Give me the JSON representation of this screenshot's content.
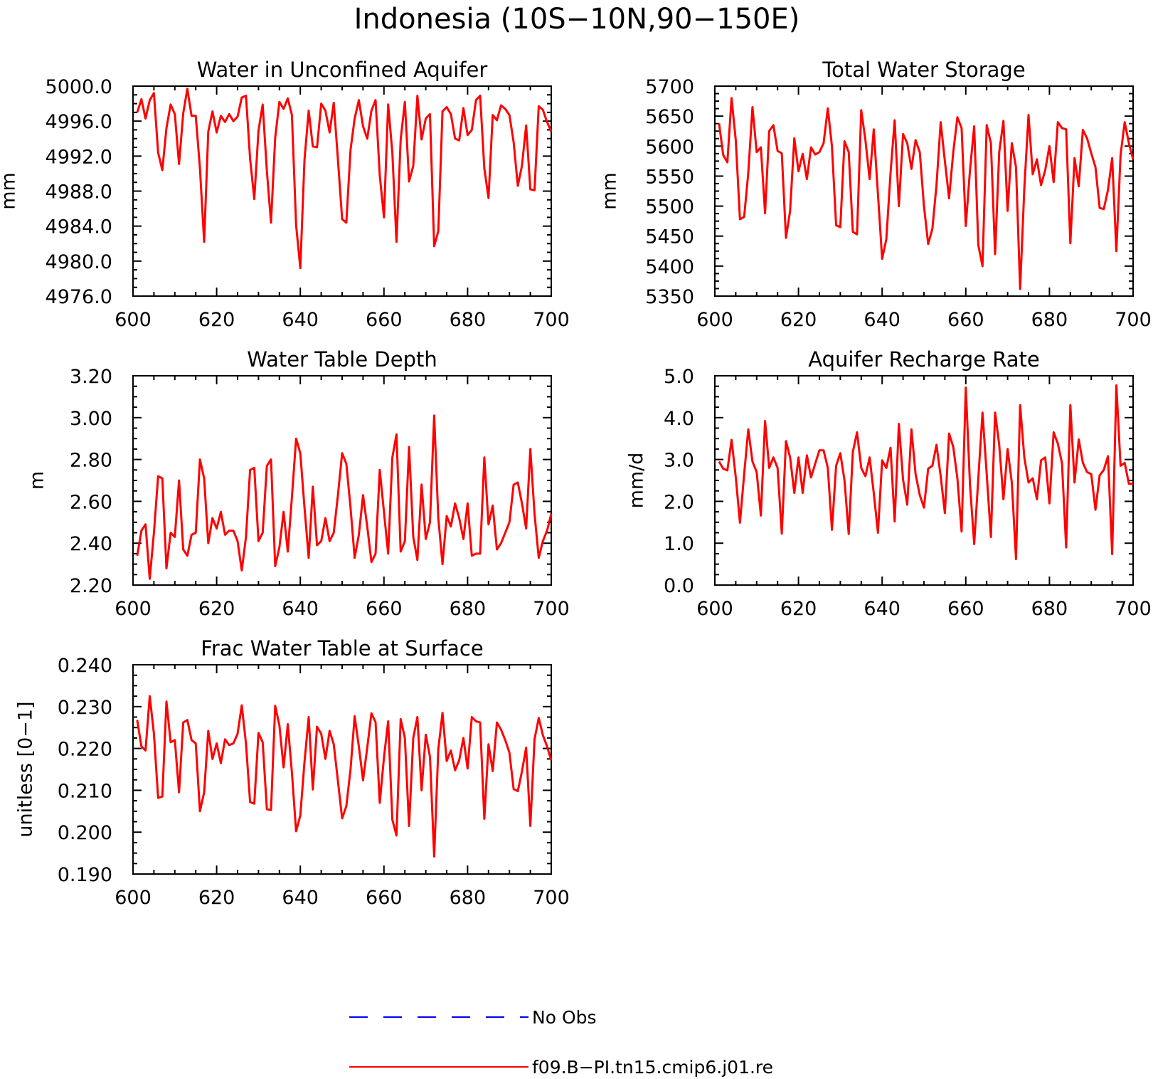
{
  "figure": {
    "title": "Indonesia (10S−10N,90−150E)",
    "colors": {
      "model": "#ff0000",
      "obs": "#0000ff",
      "axis": "#000000"
    }
  },
  "legend": {
    "entries": [
      {
        "label": "No Obs",
        "style": "dashed",
        "color": "#0000ff"
      },
      {
        "label": "f09.B−PI.tn15.cmip6.j01.re",
        "style": "solid",
        "color": "#ff0000"
      }
    ]
  },
  "chart_data": [
    {
      "type": "line",
      "title": "Water in Unconfined Aquifer",
      "xlabel": "",
      "ylabel": "mm",
      "xlim": [
        600,
        700
      ],
      "ylim": [
        4976,
        5000
      ],
      "xticks": [
        "600",
        "620",
        "640",
        "660",
        "680",
        "700"
      ],
      "yticks": [
        "4976.0",
        "4980.0",
        "4984.0",
        "4988.0",
        "4992.0",
        "4996.0",
        "5000.0"
      ],
      "x_start": 601,
      "series": [
        {
          "name": "f09.B−PI.tn15.cmip6.j01.re",
          "values": [
            4997.0,
            4998.5,
            4996.3,
            4998.4,
            4999.2,
            4992.4,
            4990.4,
            4995.2,
            4997.9,
            4996.8,
            4991.1,
            4996.9,
            4999.7,
            4996.6,
            4996.6,
            4990.6,
            4982.2,
            4994.8,
            4997.1,
            4994.7,
            4996.6,
            4995.9,
            4996.8,
            4996.0,
            4996.5,
            4998.7,
            4998.9,
            4991.7,
            4987.1,
            4994.9,
            4997.9,
            4990.3,
            4984.4,
            4994.1,
            4998.2,
            4997.4,
            4998.6,
            4996.7,
            4984.1,
            4979.2,
            4991.6,
            4997.2,
            4993.1,
            4993.0,
            4998.0,
            4997.2,
            4994.7,
            4998.1,
            4991.6,
            4984.8,
            4984.4,
            4992.7,
            4996.3,
            4998.4,
            4995.4,
            4994.0,
            4997.2,
            4998.4,
            4989.8,
            4985.0,
            4997.9,
            4992.4,
            4982.2,
            4993.9,
            4998.2,
            4989.1,
            4990.9,
            4998.9,
            4993.9,
            4996.3,
            4996.8,
            4981.7,
            4983.4,
            4997.1,
            4997.6,
            4996.8,
            4994.0,
            4993.8,
            4997.5,
            4994.4,
            4995.0,
            4998.4,
            4998.9,
            4990.6,
            4987.2,
            4996.7,
            4996.1,
            4997.8,
            4997.4,
            4996.7,
            4993.6,
            4988.6,
            4990.9,
            4995.5,
            4988.2,
            4988.1,
            4997.7,
            4997.3,
            4995.9,
            4994.8
          ]
        }
      ]
    },
    {
      "type": "line",
      "title": "Total Water Storage",
      "xlabel": "",
      "ylabel": "mm",
      "xlim": [
        600,
        700
      ],
      "ylim": [
        5350,
        5700
      ],
      "xticks": [
        "600",
        "620",
        "640",
        "660",
        "680",
        "700"
      ],
      "yticks": [
        "5350",
        "5400",
        "5450",
        "5500",
        "5550",
        "5600",
        "5650",
        "5700"
      ],
      "x_start": 601,
      "series": [
        {
          "name": "f09.B−PI.tn15.cmip6.j01.re",
          "values": [
            5638,
            5585,
            5573,
            5680,
            5610,
            5478,
            5482,
            5555,
            5665,
            5590,
            5598,
            5488,
            5625,
            5635,
            5592,
            5588,
            5447,
            5492,
            5613,
            5558,
            5587,
            5545,
            5598,
            5586,
            5590,
            5605,
            5663,
            5600,
            5468,
            5465,
            5608,
            5590,
            5457,
            5453,
            5660,
            5610,
            5545,
            5628,
            5520,
            5412,
            5445,
            5555,
            5643,
            5500,
            5620,
            5605,
            5562,
            5610,
            5590,
            5500,
            5437,
            5462,
            5535,
            5640,
            5575,
            5513,
            5590,
            5648,
            5630,
            5467,
            5560,
            5633,
            5435,
            5400,
            5635,
            5605,
            5420,
            5590,
            5642,
            5492,
            5605,
            5565,
            5362,
            5530,
            5652,
            5553,
            5578,
            5535,
            5560,
            5600,
            5540,
            5640,
            5630,
            5628,
            5438,
            5580,
            5533,
            5627,
            5613,
            5588,
            5565,
            5497,
            5495,
            5527,
            5580,
            5425,
            5585,
            5640,
            5605,
            5578
          ]
        }
      ]
    },
    {
      "type": "line",
      "title": "Water Table Depth",
      "xlabel": "",
      "ylabel": "m",
      "xlim": [
        600,
        700
      ],
      "ylim": [
        2.2,
        3.2
      ],
      "xticks": [
        "600",
        "620",
        "640",
        "660",
        "680",
        "700"
      ],
      "yticks": [
        "2.20",
        "2.40",
        "2.60",
        "2.80",
        "3.00",
        "3.20"
      ],
      "x_start": 601,
      "series": [
        {
          "name": "f09.B−PI.tn15.cmip6.j01.re",
          "values": [
            2.34,
            2.46,
            2.49,
            2.23,
            2.45,
            2.72,
            2.71,
            2.28,
            2.45,
            2.43,
            2.7,
            2.37,
            2.34,
            2.44,
            2.45,
            2.8,
            2.71,
            2.4,
            2.52,
            2.47,
            2.55,
            2.44,
            2.46,
            2.46,
            2.41,
            2.27,
            2.43,
            2.75,
            2.76,
            2.41,
            2.45,
            2.77,
            2.8,
            2.29,
            2.38,
            2.55,
            2.36,
            2.62,
            2.9,
            2.83,
            2.57,
            2.33,
            2.67,
            2.39,
            2.41,
            2.52,
            2.41,
            2.45,
            2.63,
            2.83,
            2.78,
            2.57,
            2.33,
            2.44,
            2.63,
            2.48,
            2.31,
            2.35,
            2.75,
            2.55,
            2.35,
            2.81,
            2.92,
            2.36,
            2.41,
            2.86,
            2.43,
            2.32,
            2.68,
            2.42,
            2.5,
            3.01,
            2.52,
            2.3,
            2.53,
            2.48,
            2.59,
            2.52,
            2.42,
            2.59,
            2.34,
            2.35,
            2.35,
            2.81,
            2.49,
            2.58,
            2.37,
            2.4,
            2.45,
            2.5,
            2.68,
            2.69,
            2.59,
            2.47,
            2.85,
            2.54,
            2.33,
            2.41,
            2.46,
            2.54
          ]
        }
      ]
    },
    {
      "type": "line",
      "title": "Aquifer Recharge Rate",
      "xlabel": "",
      "ylabel": "mm/d",
      "xlim": [
        600,
        700
      ],
      "ylim": [
        0,
        5
      ],
      "xticks": [
        "600",
        "620",
        "640",
        "660",
        "680",
        "700"
      ],
      "yticks": [
        "0.0",
        "1.0",
        "2.0",
        "3.0",
        "4.0",
        "5.0"
      ],
      "x_start": 601,
      "series": [
        {
          "name": "f09.B−PI.tn15.cmip6.j01.re",
          "values": [
            2.95,
            2.78,
            2.74,
            3.47,
            2.58,
            1.49,
            2.65,
            3.72,
            2.95,
            2.7,
            1.66,
            3.92,
            2.8,
            3.05,
            2.8,
            1.23,
            3.44,
            3.05,
            2.2,
            3.05,
            2.2,
            3.1,
            2.57,
            2.9,
            3.22,
            3.22,
            2.8,
            1.32,
            2.85,
            3.15,
            2.5,
            1.22,
            3.18,
            3.65,
            2.8,
            2.6,
            3.05,
            2.2,
            1.25,
            2.98,
            2.8,
            3.28,
            1.52,
            3.85,
            2.52,
            1.92,
            3.72,
            2.65,
            2.15,
            1.85,
            2.78,
            2.85,
            3.35,
            2.6,
            1.72,
            3.62,
            3.3,
            2.55,
            1.28,
            4.72,
            2.4,
            0.98,
            2.55,
            4.12,
            2.65,
            1.15,
            4.12,
            3.35,
            2.05,
            3.25,
            2.45,
            0.62,
            4.3,
            3.05,
            2.45,
            2.55,
            2.05,
            2.98,
            3.05,
            1.95,
            3.65,
            3.38,
            2.92,
            0.9,
            4.3,
            2.45,
            3.48,
            2.92,
            2.7,
            2.65,
            1.8,
            2.62,
            2.75,
            3.08,
            0.74,
            4.77,
            2.85,
            2.92,
            2.42,
            2.42
          ]
        }
      ]
    },
    {
      "type": "line",
      "title": "Frac Water Table at Surface",
      "xlabel": "",
      "ylabel": "unitless [0−1]",
      "xlim": [
        600,
        700
      ],
      "ylim": [
        0.19,
        0.24
      ],
      "xticks": [
        "600",
        "620",
        "640",
        "660",
        "680",
        "700"
      ],
      "yticks": [
        "0.190",
        "0.200",
        "0.210",
        "0.220",
        "0.230",
        "0.240"
      ],
      "x_start": 601,
      "series": [
        {
          "name": "f09.B−PI.tn15.cmip6.j01.re",
          "values": [
            0.2268,
            0.2205,
            0.2195,
            0.2325,
            0.2235,
            0.2082,
            0.2085,
            0.2312,
            0.2215,
            0.222,
            0.2095,
            0.2262,
            0.2268,
            0.222,
            0.2212,
            0.205,
            0.2095,
            0.2242,
            0.2175,
            0.2212,
            0.2165,
            0.2222,
            0.2208,
            0.2212,
            0.2235,
            0.2303,
            0.2212,
            0.2072,
            0.2068,
            0.2237,
            0.2215,
            0.2055,
            0.2053,
            0.2302,
            0.2255,
            0.2155,
            0.2258,
            0.2142,
            0.2002,
            0.204,
            0.2168,
            0.2275,
            0.2102,
            0.2252,
            0.2235,
            0.2175,
            0.2242,
            0.221,
            0.2122,
            0.2033,
            0.2062,
            0.215,
            0.2277,
            0.2205,
            0.2124,
            0.2202,
            0.2284,
            0.2263,
            0.207,
            0.2178,
            0.2265,
            0.203,
            0.1992,
            0.227,
            0.2225,
            0.2015,
            0.2225,
            0.2275,
            0.21,
            0.2233,
            0.218,
            0.1942,
            0.2198,
            0.2285,
            0.217,
            0.2195,
            0.2148,
            0.2172,
            0.2225,
            0.2152,
            0.2275,
            0.2265,
            0.2262,
            0.2032,
            0.221,
            0.2146,
            0.2262,
            0.2245,
            0.222,
            0.219,
            0.2103,
            0.2098,
            0.2145,
            0.2202,
            0.2015,
            0.2222,
            0.2273,
            0.2232,
            0.2205,
            0.2172
          ]
        }
      ]
    }
  ]
}
